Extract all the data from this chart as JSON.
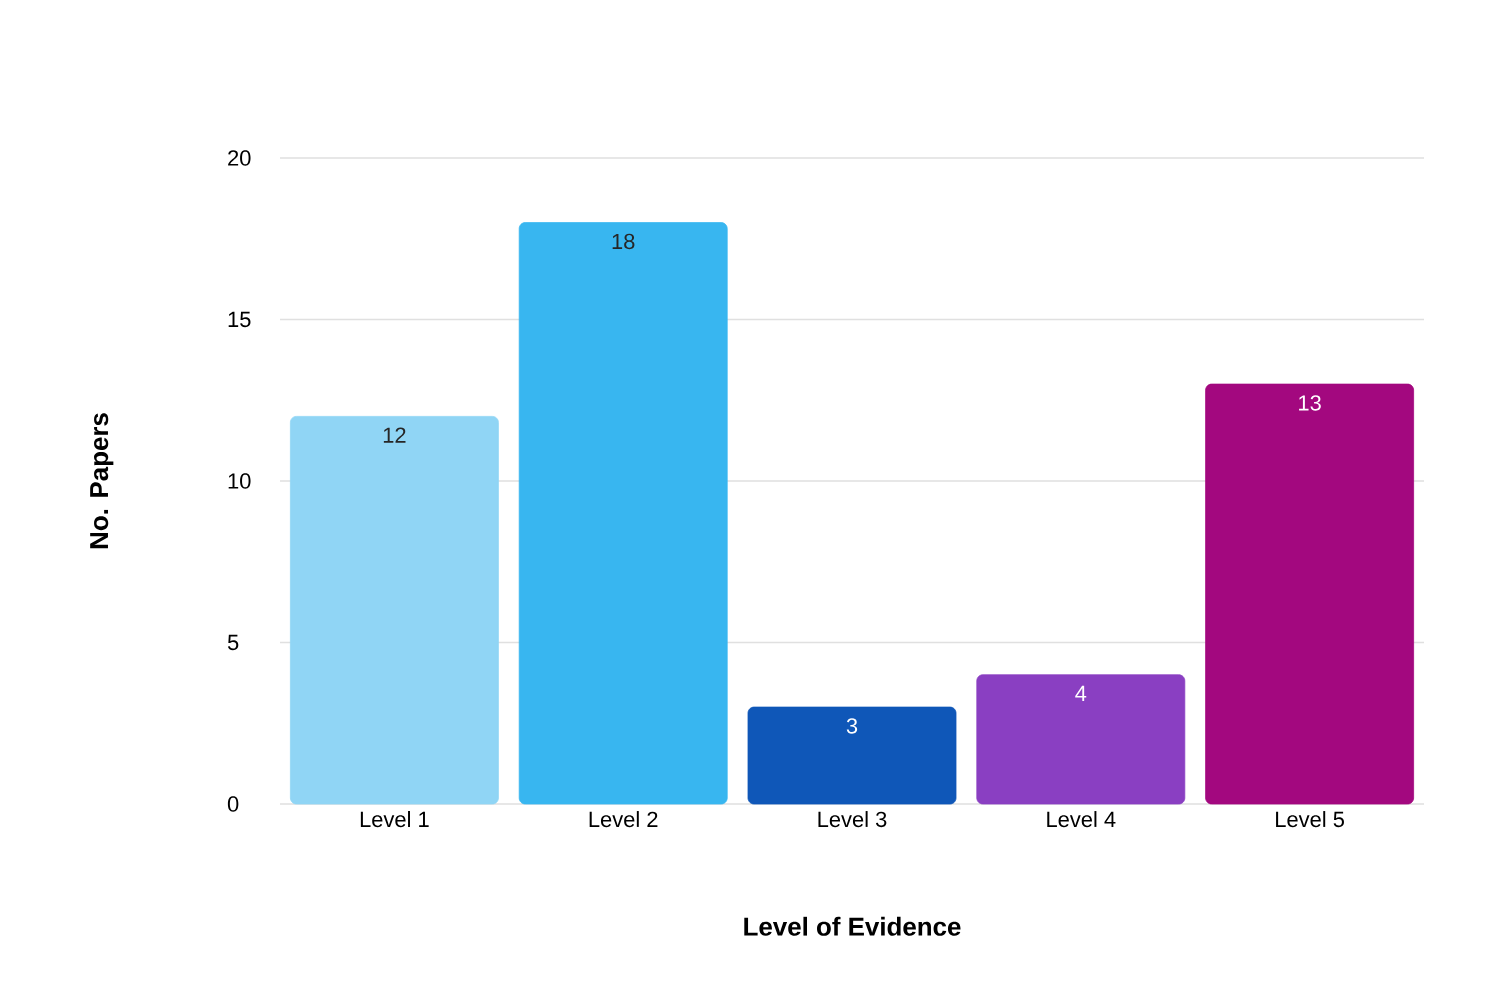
{
  "chart_data": {
    "type": "bar",
    "xlabel": "Level of Evidence",
    "ylabel": "No. Papers",
    "categories": [
      "Level 1",
      "Level 2",
      "Level 3",
      "Level 4",
      "Level 5"
    ],
    "values": [
      12,
      18,
      3,
      4,
      13
    ],
    "colors": [
      "#90d5f5",
      "#38b6f0",
      "#0f57b8",
      "#8a3fc2",
      "#a3087f"
    ],
    "ylim": [
      0,
      20
    ],
    "yticks": [
      0,
      5,
      10,
      15,
      20
    ],
    "grid": "y",
    "data_labels": true
  }
}
